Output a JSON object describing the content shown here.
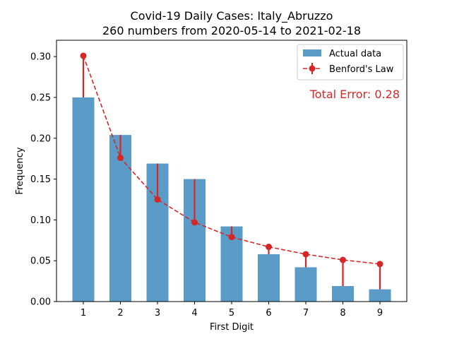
{
  "chart_data": {
    "type": "bar",
    "title": "Covid-19 Daily Cases: Italy_Abruzzo",
    "subtitle": "260 numbers from 2020-05-14 to 2021-02-18",
    "xlabel": "First Digit",
    "ylabel": "Frequency",
    "categories": [
      "1",
      "2",
      "3",
      "4",
      "5",
      "6",
      "7",
      "8",
      "9"
    ],
    "ylim": [
      0,
      0.32
    ],
    "yticks": [
      "0.00",
      "0.05",
      "0.10",
      "0.15",
      "0.20",
      "0.25",
      "0.30"
    ],
    "series": [
      {
        "name": "Actual data",
        "type": "bar",
        "color": "#5b9bc8",
        "values": [
          0.25,
          0.204,
          0.169,
          0.15,
          0.092,
          0.058,
          0.042,
          0.019,
          0.015
        ]
      },
      {
        "name": "Benford's Law",
        "type": "line",
        "color": "#d62728",
        "values": [
          0.301,
          0.176,
          0.125,
          0.097,
          0.079,
          0.067,
          0.058,
          0.051,
          0.046
        ]
      }
    ],
    "legend_placement": "top-right",
    "annotation": "Total Error: 0.28",
    "annotation_color": "#d62728",
    "grid": false
  }
}
